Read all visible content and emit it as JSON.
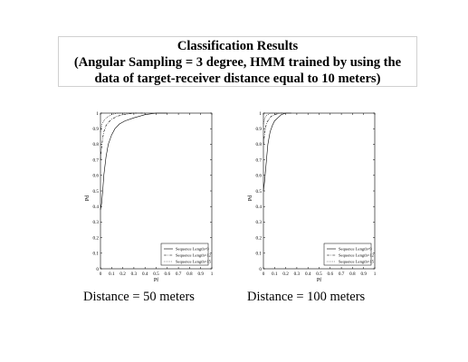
{
  "title": {
    "line1": "Classification Results",
    "line2": "(Angular Sampling = 3 degree, HMM trained by using the",
    "line3": "data of target-receiver distance equal to 10 meters)"
  },
  "chart_data": [
    {
      "type": "line",
      "caption": "Distance = 50 meters",
      "xlabel": "Pf",
      "ylabel": "Pd",
      "xlim": [
        0,
        1
      ],
      "ylim": [
        0,
        1
      ],
      "xticks": [
        "0",
        "0.1",
        "0.2",
        "0.3",
        "0.4",
        "0.5",
        "0.6",
        "0.7",
        "0.8",
        "0.9",
        "1"
      ],
      "yticks": [
        "0",
        "0.1",
        "0.2",
        "0.3",
        "0.4",
        "0.5",
        "0.6",
        "0.7",
        "0.8",
        "0.9",
        "1"
      ],
      "grid": false,
      "legend_position": "bottom-right",
      "series": [
        {
          "name": "Sequence Length=9",
          "style": "solid",
          "x": [
            0,
            0.01,
            0.02,
            0.03,
            0.05,
            0.07,
            0.1,
            0.13,
            0.17,
            0.22,
            0.3,
            0.4,
            0.5,
            0.6
          ],
          "y": [
            0.38,
            0.42,
            0.5,
            0.6,
            0.72,
            0.8,
            0.86,
            0.9,
            0.93,
            0.95,
            0.97,
            0.99,
            1.0,
            1.0
          ]
        },
        {
          "name": "Sequence Length=12",
          "style": "dashdot",
          "x": [
            0,
            0.01,
            0.02,
            0.03,
            0.05,
            0.07,
            0.1,
            0.15,
            0.2,
            0.3,
            0.4
          ],
          "y": [
            0.7,
            0.78,
            0.84,
            0.88,
            0.92,
            0.94,
            0.96,
            0.98,
            0.99,
            1.0,
            1.0
          ]
        },
        {
          "name": "Sequence Length=15",
          "style": "dotted",
          "x": [
            0,
            0.01,
            0.02,
            0.04,
            0.07,
            0.1,
            0.15,
            0.2,
            0.3
          ],
          "y": [
            0.88,
            0.92,
            0.94,
            0.96,
            0.98,
            0.99,
            1.0,
            1.0,
            1.0
          ]
        }
      ]
    },
    {
      "type": "line",
      "caption": "Distance = 100 meters",
      "xlabel": "Pf",
      "ylabel": "Pd",
      "xlim": [
        0,
        1
      ],
      "ylim": [
        0,
        1
      ],
      "xticks": [
        "0",
        "0.1",
        "0.2",
        "0.3",
        "0.4",
        "0.5",
        "0.6",
        "0.7",
        "0.8",
        "0.9",
        "1"
      ],
      "yticks": [
        "0",
        "0.1",
        "0.2",
        "0.3",
        "0.4",
        "0.5",
        "0.6",
        "0.7",
        "0.8",
        "0.9",
        "1"
      ],
      "grid": false,
      "legend_position": "bottom-right",
      "series": [
        {
          "name": "Sequence Length=9",
          "style": "solid",
          "x": [
            0,
            0.01,
            0.02,
            0.03,
            0.04,
            0.06,
            0.08,
            0.1,
            0.13,
            0.16,
            0.2,
            0.25
          ],
          "y": [
            0.5,
            0.56,
            0.64,
            0.72,
            0.8,
            0.88,
            0.92,
            0.95,
            0.97,
            0.99,
            1.0,
            1.0
          ]
        },
        {
          "name": "Sequence Length=12",
          "style": "dashdot",
          "x": [
            0,
            0.01,
            0.02,
            0.03,
            0.05,
            0.07,
            0.1,
            0.15,
            0.2
          ],
          "y": [
            0.8,
            0.86,
            0.91,
            0.94,
            0.96,
            0.98,
            0.99,
            1.0,
            1.0
          ]
        },
        {
          "name": "Sequence Length=15",
          "style": "dotted",
          "x": [
            0,
            0.01,
            0.02,
            0.04,
            0.06,
            0.1,
            0.15
          ],
          "y": [
            0.93,
            0.96,
            0.98,
            0.99,
            1.0,
            1.0,
            1.0
          ]
        }
      ]
    }
  ]
}
